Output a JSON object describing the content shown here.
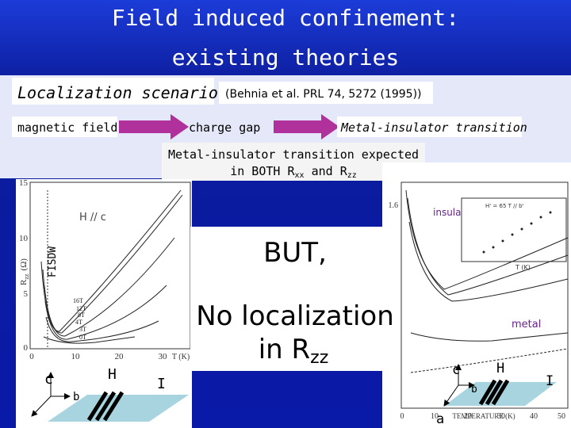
{
  "title": [
    "Field induced confinement:",
    "existing theories"
  ],
  "scenario": {
    "label": "Localization scenario",
    "reference": "(Behnia et al. PRL 74, 5272 (1995))"
  },
  "flow": [
    "magnetic field",
    "charge gap",
    "Metal-insulator transition"
  ],
  "expectation": {
    "line1": "Metal-insulator transition expected",
    "line2": [
      "in BOTH  R",
      "xx",
      " and R",
      "zz"
    ]
  },
  "left_plot": {
    "y_label": [
      "R",
      "zz",
      "(Ω)"
    ],
    "yticks": [
      "15",
      "10",
      "5",
      "0"
    ],
    "xticks": [
      "0",
      "10",
      "20",
      "30"
    ],
    "x_label": "T (K)",
    "field_label": "H // c",
    "phase_label": "FISDW",
    "curve_labels": [
      "16T",
      "12T",
      "8T",
      "4T",
      "3T",
      "0T"
    ],
    "axes": [
      "c",
      "b",
      "H",
      "I"
    ]
  },
  "right_plot": {
    "ytick": "1.6",
    "regions": [
      "insulator",
      "metal"
    ],
    "x_label": "TEMPERATURE (K)",
    "xticks": [
      "0",
      "10",
      "20",
      "30",
      "40",
      "50"
    ],
    "inset_label": "H' = 65 T // b'",
    "inset_x_label": "T (K)",
    "axes": [
      "c",
      "b",
      "H",
      "I",
      "a"
    ]
  },
  "overlay": {
    "line1": "BUT,",
    "line2": "No localization",
    "line3": [
      "in R",
      "zz"
    ]
  }
}
